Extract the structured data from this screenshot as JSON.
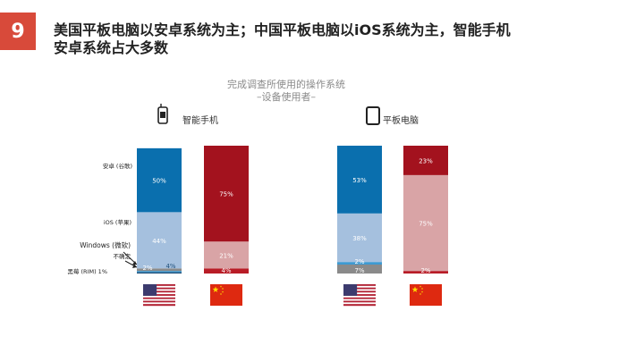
{
  "slide": {
    "number": "9",
    "headline_line1": "美国平板电脑以安卓系统为主；中国平板电脑以iOS系统为主，智能手机",
    "headline_line2": "安卓系统占大多数"
  },
  "chart_data": {
    "type": "bar",
    "stacked": true,
    "title_line1": "完成调查所使用的操作系统",
    "title_line2": "–设备使用者–",
    "ylim": [
      0,
      100
    ],
    "grid": false,
    "groups": [
      {
        "label": "智能手机",
        "icon": "smartphone-icon",
        "bars": [
          {
            "country": "us",
            "flag": "us-flag-icon",
            "segments": [
              {
                "os": "blackberry",
                "value": 1,
                "label": ""
              },
              {
                "os": "unknown",
                "value": 1,
                "label": ""
              },
              {
                "os": "windows",
                "value": 2,
                "label": "2%"
              },
              {
                "os": "ios",
                "value": 44,
                "label": "44%"
              },
              {
                "os": "android",
                "value": 50,
                "label": "50%"
              }
            ],
            "side_label": "4%"
          },
          {
            "country": "cn",
            "flag": "cn-flag-icon",
            "segments": [
              {
                "os": "windows",
                "value": 4,
                "label": "4%"
              },
              {
                "os": "ios",
                "value": 21,
                "label": "21%"
              },
              {
                "os": "android",
                "value": 75,
                "label": "75%"
              }
            ]
          }
        ]
      },
      {
        "label": "平板电脑",
        "icon": "tablet-icon",
        "bars": [
          {
            "country": "us",
            "flag": "us-flag-icon",
            "segments": [
              {
                "os": "windows",
                "value": 7,
                "label": "7%"
              },
              {
                "os": "unknown",
                "value": 2,
                "label": "2%"
              },
              {
                "os": "ios",
                "value": 38,
                "label": "38%"
              },
              {
                "os": "android",
                "value": 53,
                "label": "53%"
              }
            ]
          },
          {
            "country": "cn",
            "flag": "cn-flag-icon",
            "segments": [
              {
                "os": "windows",
                "value": 2,
                "label": "2%"
              },
              {
                "os": "ios",
                "value": 75,
                "label": "75%"
              },
              {
                "os": "android",
                "value": 23,
                "label": "23%"
              }
            ]
          }
        ]
      }
    ],
    "legend": [
      {
        "os": "android",
        "label": "安卓 (谷歌)"
      },
      {
        "os": "ios",
        "label": "iOS (苹果)"
      },
      {
        "os": "windows",
        "label": "Windows (微软)"
      },
      {
        "os": "unknown",
        "label": "不确定"
      },
      {
        "os": "blackberry",
        "label": "黑莓 (RIM) 1%"
      }
    ],
    "colors": {
      "us": {
        "android": "#0a6fae",
        "ios": "#a5c0de",
        "windows": "#8a8a8a",
        "unknown": "#3d9ad1",
        "blackberry": "#1f4e79"
      },
      "cn": {
        "android": "#a3121e",
        "ios": "#d9a4a6",
        "windows": "#b81c26",
        "unknown": "#c65b61",
        "blackberry": "#6d0c12"
      }
    }
  }
}
